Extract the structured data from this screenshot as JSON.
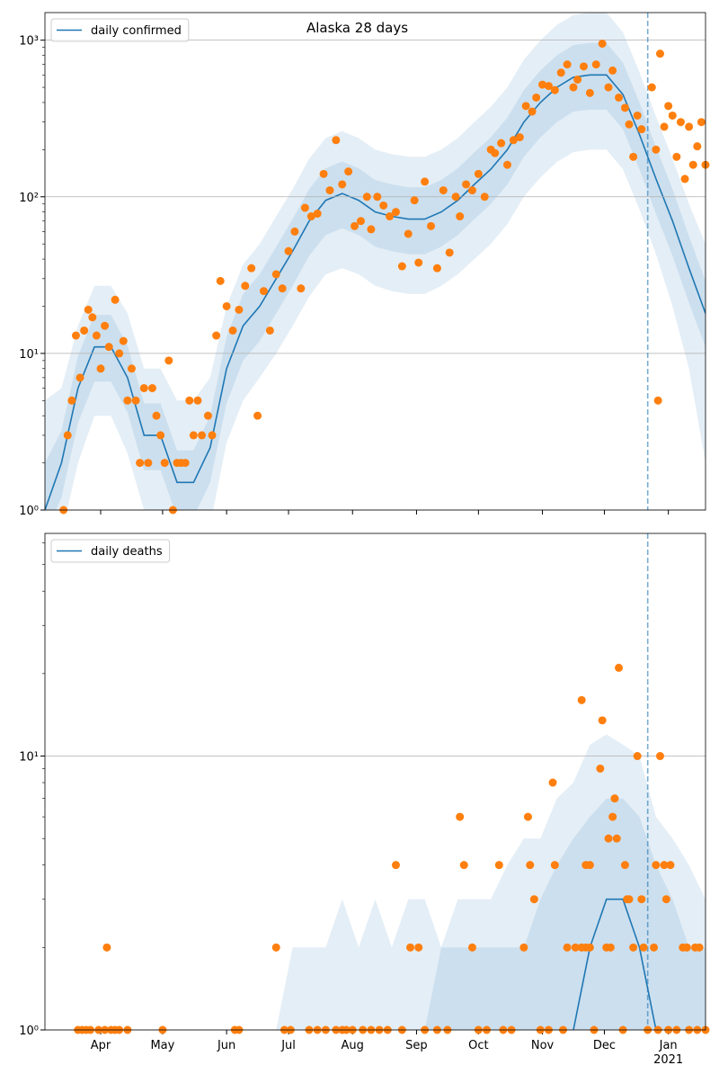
{
  "chart_data": [
    {
      "type": "line",
      "title": "Alaska 28 days",
      "log_y": true,
      "grid": true,
      "legend": "upper left",
      "xtick_labels": false,
      "xlim": [
        4,
        324
      ],
      "ylim": [
        1,
        1500
      ],
      "xticks": [
        {
          "value": 31,
          "label": "Apr"
        },
        {
          "value": 61,
          "label": "May"
        },
        {
          "value": 92,
          "label": "Jun"
        },
        {
          "value": 122,
          "label": "Jul"
        },
        {
          "value": 153,
          "label": "Aug"
        },
        {
          "value": 184,
          "label": "Sep"
        },
        {
          "value": 214,
          "label": "Oct"
        },
        {
          "value": 245,
          "label": "Nov"
        },
        {
          "value": 275,
          "label": "Dec"
        },
        {
          "value": 306,
          "label": "Jan"
        }
      ],
      "yticks": [
        {
          "value": 1,
          "label": "10⁰"
        },
        {
          "value": 10,
          "label": "10¹"
        },
        {
          "value": 100,
          "label": "10²"
        },
        {
          "value": 1000,
          "label": "10³"
        }
      ],
      "vline": 296,
      "vline_color": "#1f77b4",
      "line": {
        "name": "daily confirmed",
        "color": "#1f77b4",
        "x": [
          4,
          12,
          20,
          28,
          36,
          44,
          52,
          60,
          68,
          76,
          84,
          92,
          100,
          108,
          116,
          124,
          132,
          140,
          148,
          156,
          164,
          172,
          180,
          188,
          196,
          204,
          212,
          220,
          228,
          236,
          244,
          252,
          260,
          268,
          276,
          284,
          292,
          300,
          308,
          316,
          324
        ],
        "values": [
          1,
          2,
          6,
          11,
          11,
          7,
          3,
          3,
          1.5,
          1.5,
          2.5,
          8,
          15,
          20,
          30,
          45,
          70,
          95,
          105,
          95,
          80,
          75,
          72,
          72,
          80,
          95,
          120,
          150,
          200,
          300,
          400,
          500,
          580,
          600,
          600,
          450,
          250,
          130,
          70,
          35,
          18
        ]
      },
      "bands": [
        {
          "color": "#1f77b4",
          "lower": [
            0.5,
            0.7,
            2,
            4,
            4,
            2.3,
            1,
            1,
            0.5,
            0.5,
            0.8,
            2.7,
            5,
            7,
            10,
            15,
            23,
            32,
            35,
            32,
            27,
            25,
            24,
            24,
            27,
            32,
            40,
            50,
            67,
            100,
            133,
            167,
            193,
            200,
            200,
            150,
            83,
            43,
            20,
            8,
            2
          ],
          "upper": [
            5,
            6,
            15,
            27,
            27,
            18,
            8,
            8,
            5,
            5,
            7,
            20,
            37,
            50,
            75,
            112,
            175,
            237,
            262,
            237,
            200,
            187,
            180,
            180,
            200,
            237,
            300,
            375,
            500,
            750,
            1000,
            1250,
            1450,
            1500,
            1500,
            1125,
            625,
            325,
            175,
            90,
            50
          ]
        },
        {
          "color": "#1f77b4",
          "lower": [
            0.7,
            1.2,
            3.6,
            6.6,
            6.6,
            4.2,
            1.8,
            1.8,
            0.9,
            0.9,
            1.5,
            4.8,
            9,
            12,
            18,
            27,
            42,
            57,
            63,
            57,
            48,
            45,
            43,
            43,
            48,
            57,
            72,
            90,
            120,
            180,
            240,
            300,
            350,
            360,
            360,
            270,
            150,
            78,
            42,
            21,
            11
          ],
          "upper": [
            2,
            3.2,
            9.6,
            17.6,
            17.6,
            11.2,
            4.8,
            4.8,
            2.4,
            2.4,
            4,
            12.8,
            24,
            32,
            48,
            72,
            112,
            152,
            168,
            152,
            128,
            120,
            115,
            115,
            128,
            152,
            192,
            240,
            320,
            480,
            640,
            800,
            930,
            960,
            960,
            720,
            400,
            208,
            112,
            56,
            29
          ]
        }
      ],
      "scatter": {
        "color": "#ff7f0e",
        "x": [
          13,
          15,
          17,
          19,
          21,
          23,
          25,
          27,
          29,
          31,
          33,
          35,
          38,
          40,
          42,
          44,
          46,
          48,
          50,
          52,
          54,
          56,
          58,
          60,
          62,
          64,
          66,
          68,
          70,
          72,
          74,
          76,
          78,
          80,
          83,
          85,
          87,
          89,
          92,
          95,
          98,
          101,
          104,
          107,
          110,
          113,
          116,
          119,
          122,
          125,
          128,
          130,
          133,
          136,
          139,
          142,
          145,
          148,
          151,
          154,
          157,
          160,
          162,
          165,
          168,
          171,
          174,
          177,
          180,
          183,
          185,
          188,
          191,
          194,
          197,
          200,
          203,
          205,
          208,
          211,
          214,
          217,
          220,
          222,
          225,
          228,
          231,
          234,
          237,
          240,
          242,
          245,
          248,
          251,
          254,
          257,
          260,
          262,
          265,
          268,
          271,
          274,
          277,
          279,
          282,
          285,
          287,
          289,
          291,
          293,
          298,
          300,
          301,
          302,
          304,
          306,
          308,
          310,
          312,
          314,
          316,
          318,
          320,
          322,
          324
        ],
        "values": [
          1,
          3,
          5,
          13,
          7,
          14,
          19,
          17,
          13,
          8,
          15,
          11,
          22,
          10,
          12,
          5,
          8,
          5,
          2,
          6,
          2,
          6,
          4,
          3,
          2,
          9,
          1,
          2,
          2,
          2,
          5,
          3,
          5,
          3,
          4,
          3,
          13,
          29,
          20,
          14,
          19,
          27,
          35,
          4,
          25,
          14,
          32,
          26,
          45,
          60,
          26,
          85,
          75,
          78,
          140,
          110,
          230,
          120,
          145,
          65,
          70,
          100,
          62,
          100,
          88,
          75,
          80,
          36,
          58,
          95,
          38,
          125,
          65,
          35,
          110,
          44,
          100,
          75,
          120,
          110,
          140,
          100,
          200,
          190,
          220,
          160,
          230,
          240,
          380,
          350,
          430,
          520,
          510,
          480,
          620,
          700,
          500,
          560,
          680,
          460,
          700,
          950,
          500,
          640,
          430,
          370,
          290,
          180,
          330,
          270,
          500,
          200,
          5,
          820,
          280,
          380,
          330,
          180,
          300,
          130,
          280,
          160,
          210,
          300,
          160
        ]
      }
    },
    {
      "type": "line",
      "log_y": true,
      "grid": true,
      "legend": "upper left",
      "xtick_labels": true,
      "xlim": [
        4,
        324
      ],
      "ylim": [
        1,
        65
      ],
      "xticks": [
        {
          "value": 31,
          "label": "Apr"
        },
        {
          "value": 61,
          "label": "May"
        },
        {
          "value": 92,
          "label": "Jun"
        },
        {
          "value": 122,
          "label": "Jul"
        },
        {
          "value": 153,
          "label": "Aug"
        },
        {
          "value": 184,
          "label": "Sep"
        },
        {
          "value": 214,
          "label": "Oct"
        },
        {
          "value": 245,
          "label": "Nov"
        },
        {
          "value": 275,
          "label": "Dec"
        },
        {
          "value": 306,
          "label": "Jan"
        }
      ],
      "year_label": {
        "value": 306,
        "label": "2021"
      },
      "yticks": [
        {
          "value": 1,
          "label": "10⁰"
        },
        {
          "value": 10,
          "label": "10¹"
        }
      ],
      "vline": 296,
      "vline_color": "#1f77b4",
      "line": {
        "name": "daily deaths",
        "color": "#1f77b4",
        "x": [
          4,
          12,
          20,
          28,
          36,
          44,
          52,
          60,
          68,
          76,
          84,
          92,
          100,
          108,
          116,
          124,
          132,
          140,
          148,
          156,
          164,
          172,
          180,
          188,
          196,
          204,
          212,
          220,
          228,
          236,
          244,
          252,
          260,
          268,
          276,
          284,
          292,
          300,
          308,
          316,
          324
        ],
        "values": [
          null,
          null,
          null,
          null,
          null,
          null,
          null,
          null,
          null,
          null,
          null,
          null,
          null,
          null,
          null,
          null,
          null,
          null,
          null,
          null,
          null,
          null,
          null,
          null,
          null,
          null,
          null,
          null,
          null,
          null,
          null,
          null,
          1,
          2,
          3,
          3,
          2,
          1,
          null,
          null,
          null
        ]
      },
      "bands": [
        {
          "color": "#1f77b4",
          "upper": [
            1,
            1,
            1,
            1,
            1,
            1,
            1,
            1,
            1,
            1,
            1,
            1,
            1,
            1,
            1,
            2,
            2,
            2,
            3,
            2,
            3,
            2,
            3,
            3,
            2,
            3,
            3,
            3,
            4,
            5,
            5,
            7,
            8,
            11,
            12,
            11,
            10,
            6,
            5,
            4,
            3
          ]
        },
        {
          "color": "#1f77b4",
          "upper": [
            1,
            1,
            1,
            1,
            1,
            1,
            1,
            1,
            1,
            1,
            1,
            1,
            1,
            1,
            1,
            1,
            1,
            1,
            1,
            1,
            1,
            1,
            1,
            1,
            2,
            2,
            2,
            2,
            2,
            2,
            3,
            4,
            5,
            6,
            7,
            7,
            6,
            4,
            3,
            2,
            2
          ]
        }
      ],
      "scatter": {
        "color": "#ff7f0e",
        "x": [
          20,
          22,
          24,
          26,
          30,
          33,
          34,
          36,
          38,
          40,
          44,
          61,
          96,
          98,
          116,
          120,
          123,
          132,
          136,
          140,
          145,
          148,
          150,
          153,
          158,
          162,
          166,
          170,
          174,
          177,
          181,
          185,
          188,
          194,
          199,
          205,
          207,
          211,
          214,
          218,
          224,
          226,
          230,
          236,
          238,
          239,
          241,
          244,
          248,
          250,
          251,
          255,
          257,
          261,
          264,
          264,
          266,
          266,
          268,
          268,
          270,
          273,
          274,
          276,
          277,
          278,
          279,
          280,
          281,
          282,
          284,
          285,
          286,
          287,
          289,
          291,
          293,
          294,
          296,
          299,
          300,
          301,
          302,
          304,
          305,
          306,
          307,
          310,
          313,
          315,
          316,
          319,
          320,
          321,
          324
        ],
        "values": [
          1,
          1,
          1,
          1,
          1,
          1,
          2,
          1,
          1,
          1,
          1,
          1,
          1,
          1,
          2,
          1,
          1,
          1,
          1,
          1,
          1,
          1,
          1,
          1,
          1,
          1,
          1,
          1,
          4,
          1,
          2,
          2,
          1,
          1,
          1,
          6,
          4,
          2,
          1,
          1,
          4,
          1,
          1,
          2,
          6,
          4,
          3,
          1,
          1,
          8,
          4,
          1,
          2,
          2,
          16,
          2,
          4,
          2,
          4,
          2,
          1,
          9,
          13.5,
          2,
          5,
          2,
          6,
          7,
          5,
          21,
          1,
          4,
          3,
          3,
          2,
          10,
          3,
          2,
          1,
          2,
          4,
          1,
          10,
          4,
          3,
          1,
          4,
          1,
          2,
          2,
          1,
          2,
          1,
          2,
          1
        ]
      }
    }
  ]
}
